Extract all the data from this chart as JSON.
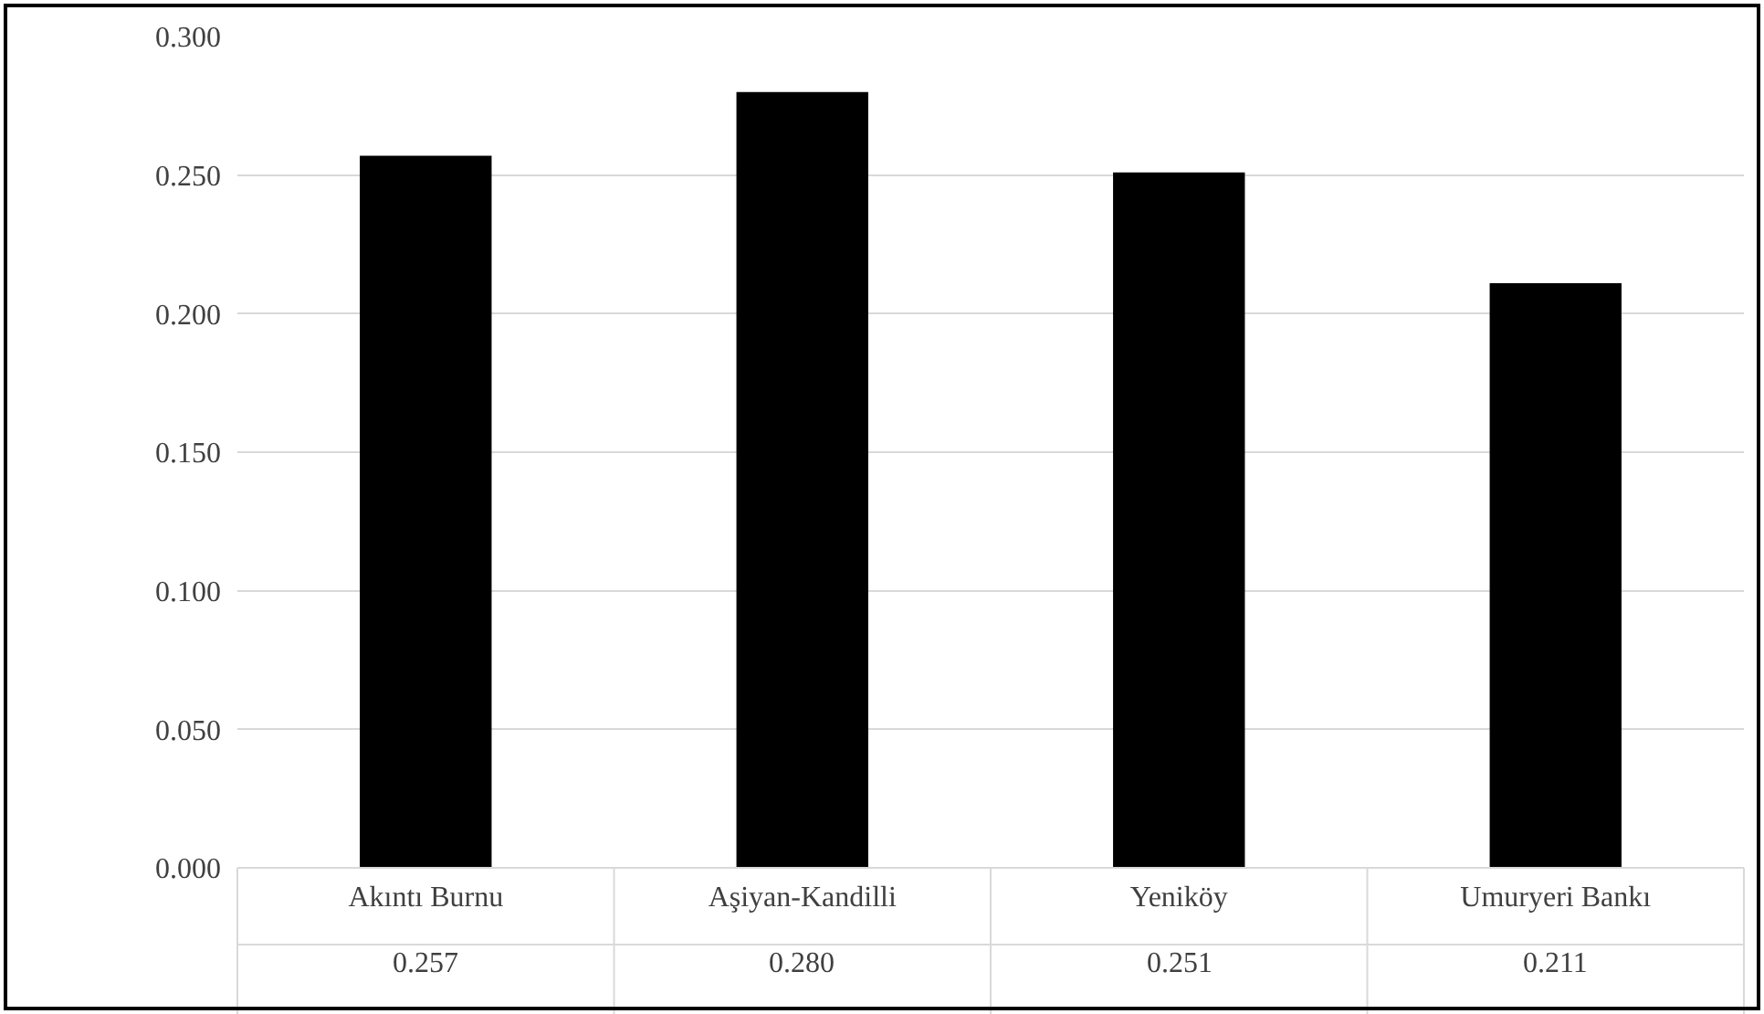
{
  "chart_data": {
    "type": "bar",
    "categories": [
      "Akıntı Burnu",
      "Aşiyan-Kandilli",
      "Yeniköy",
      "Umuryeri Bankı"
    ],
    "values": [
      0.257,
      0.28,
      0.251,
      0.211
    ],
    "color": "#000000",
    "ylim": [
      0,
      0.3
    ],
    "yticks": [
      {
        "value": 0,
        "label": "0.000"
      },
      {
        "value": 0.05,
        "label": "0.050"
      },
      {
        "value": 0.1,
        "label": "0.100"
      },
      {
        "value": 0.15,
        "label": "0.150"
      },
      {
        "value": 0.2,
        "label": "0.200"
      },
      {
        "value": 0.25,
        "label": "0.250"
      },
      {
        "value": 0.3,
        "label": "0.300"
      }
    ],
    "grid": "y",
    "legend": false,
    "data_labels": true,
    "value_labels": [
      "0.257",
      "0.280",
      "0.251",
      "0.211"
    ]
  }
}
